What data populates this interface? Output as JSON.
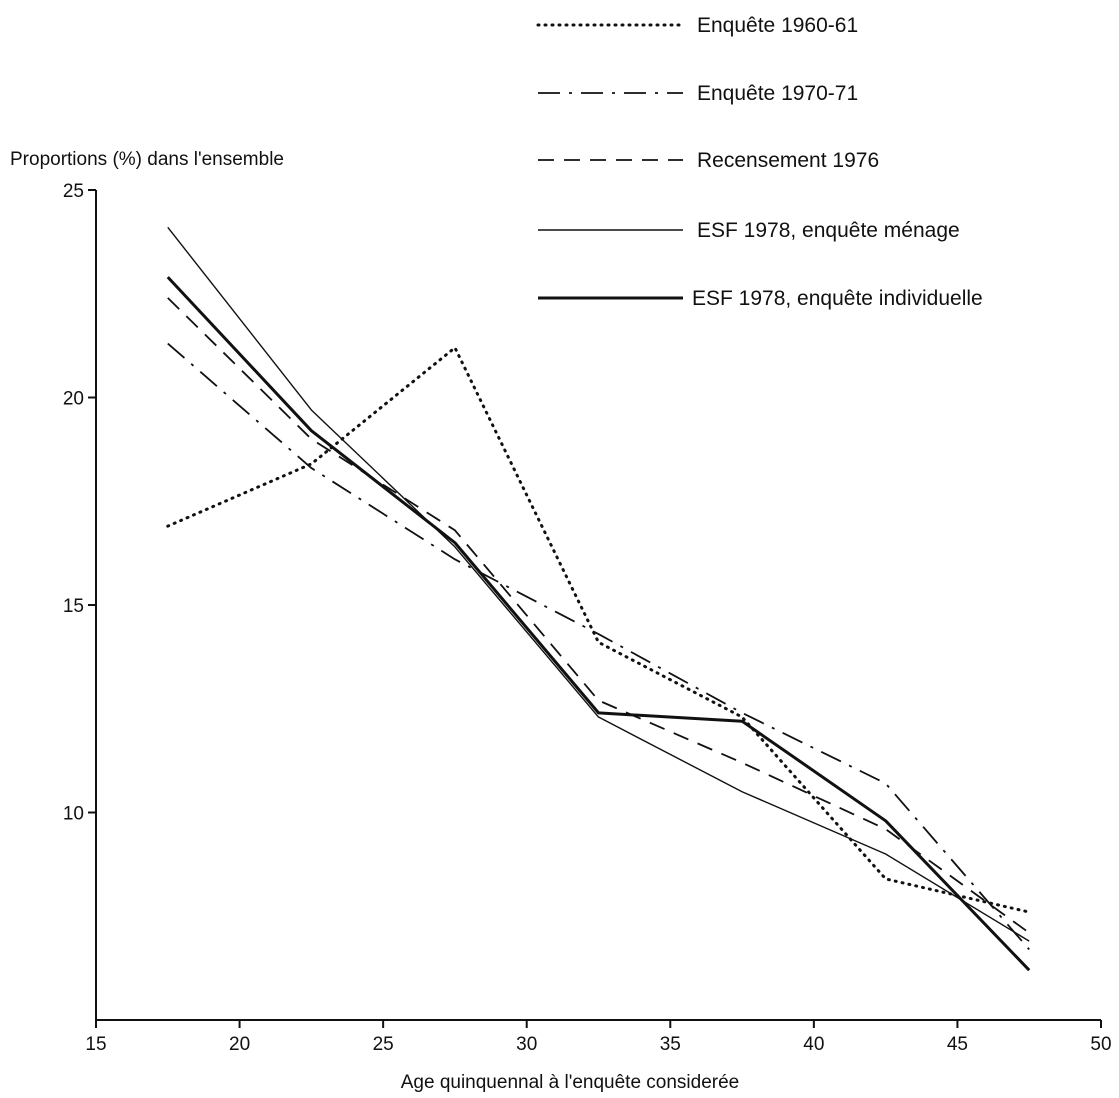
{
  "chart_data": {
    "type": "line",
    "xlabel": "Age quinquennal à l'enquête considerée",
    "ylabel": "Proportions (%) dans l'ensemble",
    "xlim": [
      15,
      50
    ],
    "ylim": [
      5,
      25
    ],
    "x_ticks": [
      15,
      20,
      25,
      30,
      35,
      40,
      45,
      50
    ],
    "x_tick_labels": [
      "15",
      "20",
      "25",
      "30",
      "35",
      "40",
      "45",
      "50"
    ],
    "y_ticks": [
      10,
      15,
      20,
      25
    ],
    "y_tick_labels": [
      "10",
      "15",
      "20",
      "25"
    ],
    "x": [
      17.5,
      22.5,
      27.5,
      32.5,
      37.5,
      42.5,
      47.5
    ],
    "grid": false,
    "legend_position": "top-right",
    "series": [
      {
        "name": "Enquête 1960-61",
        "style": "dotted",
        "values": [
          16.9,
          18.4,
          21.2,
          14.1,
          12.3,
          8.4,
          7.6
        ]
      },
      {
        "name": "Enquête 1970-71",
        "style": "dash-dot",
        "values": [
          21.3,
          18.3,
          16.1,
          14.3,
          12.4,
          10.7,
          6.7
        ]
      },
      {
        "name": "Recensement 1976",
        "style": "dashed",
        "values": [
          22.4,
          19.0,
          16.8,
          12.7,
          11.2,
          9.6,
          7.1
        ]
      },
      {
        "name": "ESF 1978, enquête ménage",
        "style": "thin-solid",
        "values": [
          24.1,
          19.7,
          16.4,
          12.3,
          10.5,
          9.0,
          6.9
        ]
      },
      {
        "name": "ESF 1978, enquête individuelle",
        "style": "thick-solid",
        "values": [
          22.9,
          19.2,
          16.5,
          12.4,
          12.2,
          9.8,
          6.2
        ]
      }
    ]
  }
}
